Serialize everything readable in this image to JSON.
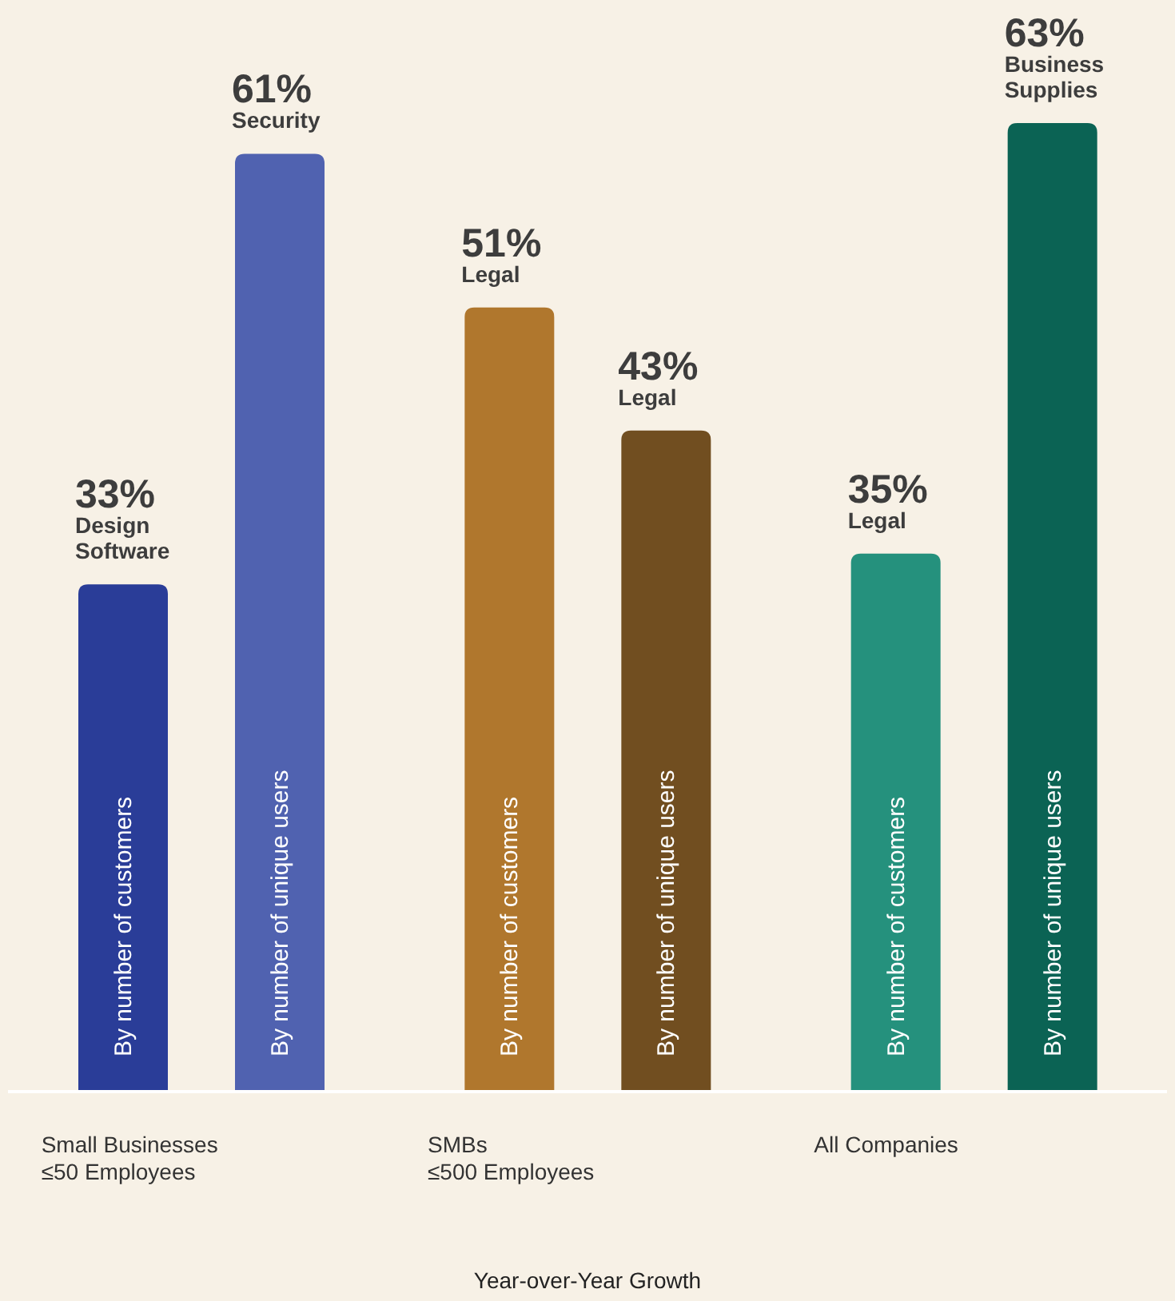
{
  "chart_data": {
    "type": "bar",
    "xlabel": "Year-over-Year Growth",
    "categories": [
      "Small Businesses\n≤50 Employees",
      "SMBs\n≤500 Employees",
      "All Companies"
    ],
    "series": [
      {
        "name": "By number of customers",
        "colors": [
          "#2a3d98",
          "#b0772d",
          "#25917d"
        ],
        "values": [
          33,
          51,
          35
        ],
        "value_labels": [
          "33%",
          "51%",
          "35%"
        ]
      },
      {
        "name": "By number of unique users",
        "colors": [
          "#5062b0",
          "#714e20",
          "#0b6354"
        ],
        "values": [
          61,
          43,
          63
        ],
        "value_labels": [
          "61%",
          "43%",
          "63%"
        ]
      }
    ],
    "annotations": [
      "Design Software",
      "Security",
      "Legal",
      "Legal",
      "Legal",
      "Business Supplies"
    ],
    "grid": false,
    "legend": false
  }
}
